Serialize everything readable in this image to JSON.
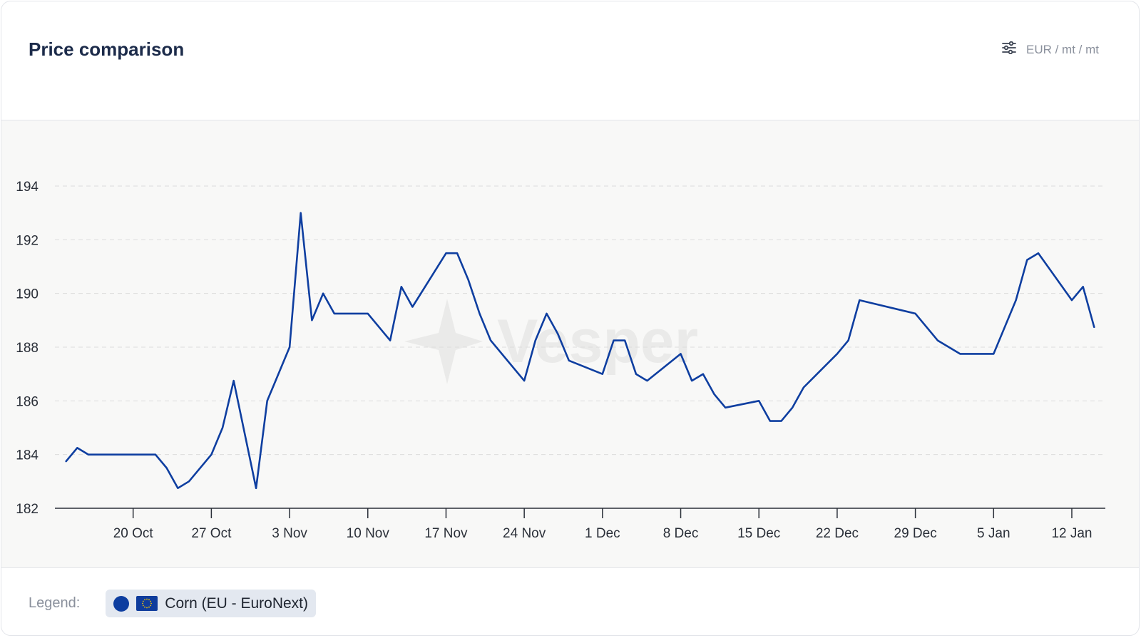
{
  "header": {
    "title": "Price comparison",
    "unit": "EUR / mt / mt"
  },
  "icons": {
    "filter": "sliders-icon",
    "watermark": "vesper-star-logo",
    "flag": "eu-flag-icon"
  },
  "watermark": {
    "text": "Vesper"
  },
  "legend": {
    "label": "Legend:",
    "items": [
      {
        "name": "Corn (EU - EuroNext)",
        "color": "#0e3ea0"
      }
    ]
  },
  "colors": {
    "line": "#0e3ea0",
    "grid": "#dcdcdc",
    "axis": "#2a2f38",
    "plot_bg": "#f8f8f7"
  },
  "chart_data": {
    "type": "line",
    "x_type": "date",
    "xlim": [
      "2023-10-13",
      "2024-01-15"
    ],
    "ylim": [
      182,
      195
    ],
    "yticks": [
      182,
      184,
      186,
      188,
      190,
      192,
      194
    ],
    "xticks": [
      {
        "date": "2023-10-20",
        "label": "20 Oct"
      },
      {
        "date": "2023-10-27",
        "label": "27 Oct"
      },
      {
        "date": "2023-11-03",
        "label": "3 Nov"
      },
      {
        "date": "2023-11-10",
        "label": "10 Nov"
      },
      {
        "date": "2023-11-17",
        "label": "17 Nov"
      },
      {
        "date": "2023-11-24",
        "label": "24 Nov"
      },
      {
        "date": "2023-12-01",
        "label": "1 Dec"
      },
      {
        "date": "2023-12-08",
        "label": "8 Dec"
      },
      {
        "date": "2023-12-15",
        "label": "15 Dec"
      },
      {
        "date": "2023-12-22",
        "label": "22 Dec"
      },
      {
        "date": "2023-12-29",
        "label": "29 Dec"
      },
      {
        "date": "2024-01-05",
        "label": "5 Jan"
      },
      {
        "date": "2024-01-12",
        "label": "12 Jan"
      }
    ],
    "grid": true,
    "legend_position": "bottom",
    "series": [
      {
        "name": "Corn (EU - EuroNext)",
        "color": "#0e3ea0",
        "points": [
          [
            "2023-10-14",
            183.75
          ],
          [
            "2023-10-15",
            184.25
          ],
          [
            "2023-10-16",
            184.0
          ],
          [
            "2023-10-18",
            184.0
          ],
          [
            "2023-10-20",
            184.0
          ],
          [
            "2023-10-21",
            184.0
          ],
          [
            "2023-10-22",
            184.0
          ],
          [
            "2023-10-23",
            183.5
          ],
          [
            "2023-10-24",
            182.75
          ],
          [
            "2023-10-25",
            183.0
          ],
          [
            "2023-10-27",
            184.0
          ],
          [
            "2023-10-28",
            185.0
          ],
          [
            "2023-10-29",
            186.75
          ],
          [
            "2023-10-31",
            182.75
          ],
          [
            "2023-11-01",
            186.0
          ],
          [
            "2023-11-03",
            188.0
          ],
          [
            "2023-11-04",
            193.0
          ],
          [
            "2023-11-05",
            189.0
          ],
          [
            "2023-11-06",
            190.0
          ],
          [
            "2023-11-07",
            189.25
          ],
          [
            "2023-11-08",
            189.25
          ],
          [
            "2023-11-10",
            189.25
          ],
          [
            "2023-11-12",
            188.25
          ],
          [
            "2023-11-13",
            190.25
          ],
          [
            "2023-11-14",
            189.5
          ],
          [
            "2023-11-17",
            191.5
          ],
          [
            "2023-11-18",
            191.5
          ],
          [
            "2023-11-19",
            190.5
          ],
          [
            "2023-11-20",
            189.25
          ],
          [
            "2023-11-21",
            188.25
          ],
          [
            "2023-11-24",
            186.75
          ],
          [
            "2023-11-25",
            188.25
          ],
          [
            "2023-11-26",
            189.25
          ],
          [
            "2023-11-27",
            188.5
          ],
          [
            "2023-11-28",
            187.5
          ],
          [
            "2023-12-01",
            187.0
          ],
          [
            "2023-12-02",
            188.25
          ],
          [
            "2023-12-03",
            188.25
          ],
          [
            "2023-12-04",
            187.0
          ],
          [
            "2023-12-05",
            186.75
          ],
          [
            "2023-12-08",
            187.75
          ],
          [
            "2023-12-09",
            186.75
          ],
          [
            "2023-12-10",
            187.0
          ],
          [
            "2023-12-11",
            186.25
          ],
          [
            "2023-12-12",
            185.75
          ],
          [
            "2023-12-15",
            186.0
          ],
          [
            "2023-12-16",
            185.25
          ],
          [
            "2023-12-17",
            185.25
          ],
          [
            "2023-12-18",
            185.75
          ],
          [
            "2023-12-19",
            186.5
          ],
          [
            "2023-12-22",
            187.75
          ],
          [
            "2023-12-23",
            188.25
          ],
          [
            "2023-12-24",
            189.75
          ],
          [
            "2023-12-29",
            189.25
          ],
          [
            "2023-12-31",
            188.25
          ],
          [
            "2024-01-02",
            187.75
          ],
          [
            "2024-01-05",
            187.75
          ],
          [
            "2024-01-07",
            189.75
          ],
          [
            "2024-01-08",
            191.25
          ],
          [
            "2024-01-09",
            191.5
          ],
          [
            "2024-01-12",
            189.75
          ],
          [
            "2024-01-13",
            190.25
          ],
          [
            "2024-01-14",
            188.75
          ]
        ]
      }
    ]
  }
}
